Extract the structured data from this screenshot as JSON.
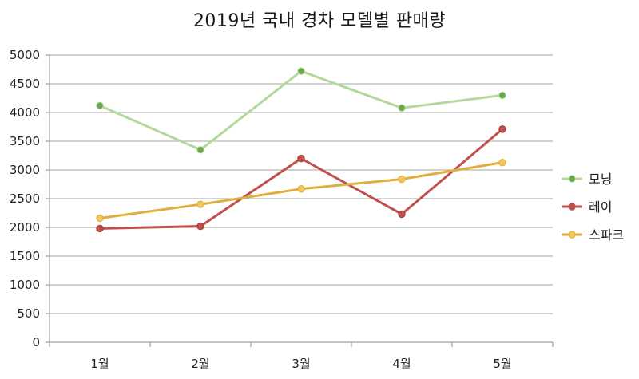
{
  "chart_data": {
    "type": "line",
    "title": "2019년 국내 경차 모델별 판매량",
    "categories": [
      "1월",
      "2월",
      "3월",
      "4월",
      "5월"
    ],
    "series": [
      {
        "name": "모닝",
        "values": [
          4120,
          3350,
          4720,
          4080,
          4300
        ],
        "color": "#b3d99a",
        "marker": "#6aa84f"
      },
      {
        "name": "레이",
        "values": [
          1980,
          2020,
          3200,
          2230,
          3710
        ],
        "color": "#c0504d",
        "marker": "#c0504d"
      },
      {
        "name": "스파크",
        "values": [
          2160,
          2400,
          2670,
          2840,
          3130
        ],
        "color": "#e0ae3c",
        "marker": "#f1c65c"
      }
    ],
    "ylim": [
      0,
      5000
    ],
    "yticks": [
      0,
      500,
      1000,
      1500,
      2000,
      2500,
      3000,
      3500,
      4000,
      4500,
      5000
    ],
    "xlabel": "",
    "ylabel": "",
    "grid": true,
    "legend": "right"
  }
}
